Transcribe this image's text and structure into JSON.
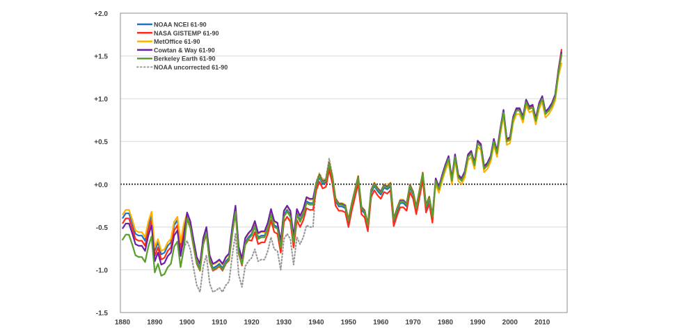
{
  "chart_data": {
    "type": "line",
    "title": "",
    "xlabel": "",
    "ylabel": "",
    "xlim": [
      1880,
      2016
    ],
    "ylim": [
      -1.5,
      2.0
    ],
    "x_start": 1880,
    "x_end": 2016,
    "x_ticks": [
      "1880",
      "1890",
      "1900",
      "1910",
      "1920",
      "1930",
      "1940",
      "1950",
      "1960",
      "1970",
      "1980",
      "1990",
      "2000",
      "2010"
    ],
    "y_ticks": [
      {
        "value": 2.0,
        "label": "+2.0"
      },
      {
        "value": 1.5,
        "label": "+1.5"
      },
      {
        "value": 1.0,
        "label": "+1.0"
      },
      {
        "value": 0.5,
        "label": "+0.5"
      },
      {
        "value": 0.0,
        "label": "+0.0"
      },
      {
        "value": -0.5,
        "label": "-0.5"
      },
      {
        "value": -1.0,
        "label": "-1.0"
      },
      {
        "value": -1.5,
        "label": "-1.5"
      }
    ],
    "grid": true,
    "zero_line": "dotted",
    "legend_position": "top-left",
    "series": [
      {
        "name": "NOAA uncorrected 61-90",
        "color": "#999999",
        "style": "dotted",
        "values": [
          -0.65,
          -0.59,
          -0.59,
          -0.7,
          -0.83,
          -0.85,
          -0.85,
          -0.91,
          -0.73,
          -0.61,
          -1.03,
          -0.93,
          -1.07,
          -1.05,
          -0.97,
          -0.93,
          -0.73,
          -0.67,
          -0.97,
          -0.75,
          -0.66,
          -0.76,
          -0.98,
          -1.18,
          -1.26,
          -0.96,
          -0.83,
          -1.16,
          -1.26,
          -1.24,
          -1.21,
          -1.26,
          -1.18,
          -1.14,
          -0.83,
          -0.58,
          -1.06,
          -1.2,
          -0.96,
          -0.9,
          -0.86,
          -0.76,
          -0.9,
          -0.88,
          -0.88,
          -0.78,
          -0.62,
          -0.76,
          -0.78,
          -1.0,
          -0.64,
          -0.58,
          -0.64,
          -0.94,
          -0.62,
          -0.7,
          -0.62,
          -0.48,
          -0.5,
          -0.5,
          0.03,
          0.13,
          0.05,
          0.07,
          0.3,
          0.11,
          -0.2,
          -0.26,
          -0.26,
          -0.28,
          -0.45,
          -0.26,
          -0.1,
          0.06,
          -0.3,
          -0.34,
          -0.5,
          -0.1,
          -0.02,
          -0.08,
          -0.12,
          -0.04,
          -0.06,
          -0.02,
          -0.44,
          -0.32,
          -0.22,
          -0.22,
          -0.26,
          -0.04,
          -0.12,
          -0.3,
          -0.1,
          0.1,
          -0.28,
          -0.18,
          -0.4,
          0.04,
          -0.06,
          0.08,
          0.2,
          0.3,
          0.04,
          0.32,
          0.08,
          0.04,
          0.12,
          0.32,
          0.36,
          0.22,
          0.48,
          0.44,
          0.18,
          0.22,
          0.3,
          0.5,
          0.36,
          0.62,
          0.84,
          0.5,
          0.52,
          0.76,
          0.86,
          0.86,
          0.76,
          0.96,
          0.88,
          0.9,
          0.74,
          0.92,
          1.0,
          0.82,
          0.86,
          0.92,
          1.02,
          1.3,
          1.52
        ]
      },
      {
        "name": "NOAA NCEI 61-90",
        "color": "#1f6fc5",
        "style": "solid",
        "values": [
          -0.4,
          -0.34,
          -0.34,
          -0.45,
          -0.58,
          -0.6,
          -0.6,
          -0.66,
          -0.48,
          -0.36,
          -0.78,
          -0.68,
          -0.82,
          -0.8,
          -0.72,
          -0.68,
          -0.48,
          -0.42,
          -0.72,
          -0.5,
          -0.38,
          -0.48,
          -0.7,
          -0.9,
          -0.98,
          -0.68,
          -0.55,
          -0.88,
          -0.98,
          -0.96,
          -0.93,
          -0.98,
          -0.9,
          -0.86,
          -0.55,
          -0.3,
          -0.78,
          -0.92,
          -0.68,
          -0.62,
          -0.58,
          -0.48,
          -0.62,
          -0.6,
          -0.6,
          -0.5,
          -0.34,
          -0.48,
          -0.5,
          -0.72,
          -0.36,
          -0.3,
          -0.36,
          -0.66,
          -0.34,
          -0.42,
          -0.34,
          -0.2,
          -0.22,
          -0.22,
          -0.02,
          0.08,
          0.0,
          0.02,
          0.22,
          0.06,
          -0.2,
          -0.26,
          -0.26,
          -0.28,
          -0.45,
          -0.26,
          -0.1,
          0.06,
          -0.3,
          -0.34,
          -0.5,
          -0.1,
          -0.02,
          -0.08,
          -0.12,
          -0.04,
          -0.06,
          -0.02,
          -0.44,
          -0.32,
          -0.22,
          -0.22,
          -0.26,
          -0.04,
          -0.12,
          -0.3,
          -0.1,
          0.1,
          -0.28,
          -0.18,
          -0.4,
          0.04,
          -0.06,
          0.08,
          0.2,
          0.3,
          0.04,
          0.32,
          0.08,
          0.04,
          0.12,
          0.32,
          0.36,
          0.22,
          0.48,
          0.44,
          0.18,
          0.22,
          0.3,
          0.5,
          0.36,
          0.62,
          0.84,
          0.5,
          0.52,
          0.76,
          0.86,
          0.86,
          0.76,
          0.96,
          0.88,
          0.9,
          0.74,
          0.92,
          1.0,
          0.82,
          0.86,
          0.92,
          1.02,
          1.3,
          1.52
        ]
      },
      {
        "name": "NASA GISTEMP 61-90",
        "color": "#ff2a1a",
        "style": "solid",
        "values": [
          -0.46,
          -0.4,
          -0.4,
          -0.51,
          -0.64,
          -0.66,
          -0.66,
          -0.72,
          -0.54,
          -0.42,
          -0.84,
          -0.74,
          -0.88,
          -0.86,
          -0.78,
          -0.74,
          -0.54,
          -0.48,
          -0.78,
          -0.56,
          -0.41,
          -0.51,
          -0.73,
          -0.93,
          -1.01,
          -0.71,
          -0.58,
          -0.91,
          -1.01,
          -0.99,
          -0.96,
          -1.01,
          -0.93,
          -0.89,
          -0.58,
          -0.33,
          -0.81,
          -0.95,
          -0.71,
          -0.65,
          -0.66,
          -0.56,
          -0.7,
          -0.68,
          -0.68,
          -0.58,
          -0.42,
          -0.56,
          -0.58,
          -0.8,
          -0.44,
          -0.38,
          -0.44,
          -0.74,
          -0.42,
          -0.5,
          -0.42,
          -0.28,
          -0.3,
          -0.3,
          -0.07,
          0.03,
          -0.05,
          -0.03,
          0.17,
          0.01,
          -0.25,
          -0.31,
          -0.31,
          -0.33,
          -0.5,
          -0.31,
          -0.15,
          0.01,
          -0.35,
          -0.39,
          -0.55,
          -0.15,
          -0.07,
          -0.13,
          -0.17,
          -0.09,
          -0.11,
          -0.07,
          -0.49,
          -0.37,
          -0.27,
          -0.27,
          -0.31,
          -0.09,
          -0.17,
          -0.35,
          -0.15,
          0.05,
          -0.33,
          -0.23,
          -0.45,
          0.06,
          -0.04,
          0.1,
          0.22,
          0.32,
          0.06,
          0.34,
          0.1,
          0.06,
          0.14,
          0.34,
          0.38,
          0.24,
          0.5,
          0.46,
          0.2,
          0.24,
          0.32,
          0.52,
          0.38,
          0.64,
          0.86,
          0.52,
          0.54,
          0.78,
          0.88,
          0.88,
          0.78,
          0.98,
          0.9,
          0.92,
          0.76,
          0.94,
          1.02,
          0.84,
          0.88,
          0.94,
          1.04,
          1.34,
          1.58
        ]
      },
      {
        "name": "MetOffice 61-90",
        "color": "#ffb000",
        "style": "solid",
        "values": [
          -0.36,
          -0.3,
          -0.3,
          -0.41,
          -0.54,
          -0.56,
          -0.56,
          -0.62,
          -0.44,
          -0.32,
          -0.74,
          -0.64,
          -0.78,
          -0.76,
          -0.68,
          -0.64,
          -0.44,
          -0.38,
          -0.68,
          -0.46,
          -0.34,
          -0.44,
          -0.66,
          -0.86,
          -0.94,
          -0.64,
          -0.51,
          -0.84,
          -0.94,
          -0.92,
          -0.89,
          -0.94,
          -0.86,
          -0.82,
          -0.51,
          -0.26,
          -0.74,
          -0.88,
          -0.64,
          -0.58,
          -0.54,
          -0.44,
          -0.58,
          -0.56,
          -0.56,
          -0.46,
          -0.3,
          -0.44,
          -0.46,
          -0.68,
          -0.32,
          -0.26,
          -0.32,
          -0.62,
          -0.3,
          -0.38,
          -0.3,
          -0.16,
          -0.18,
          -0.18,
          0.02,
          0.12,
          0.04,
          0.06,
          0.26,
          0.1,
          -0.16,
          -0.22,
          -0.22,
          -0.24,
          -0.41,
          -0.22,
          -0.06,
          0.1,
          -0.26,
          -0.3,
          -0.46,
          -0.06,
          0.02,
          -0.04,
          -0.08,
          0.0,
          -0.02,
          0.02,
          -0.4,
          -0.28,
          -0.18,
          -0.18,
          -0.22,
          0.0,
          -0.08,
          -0.26,
          -0.06,
          0.14,
          -0.24,
          -0.14,
          -0.36,
          0.0,
          -0.1,
          0.04,
          0.16,
          0.26,
          0.0,
          0.28,
          0.04,
          0.0,
          0.08,
          0.28,
          0.32,
          0.18,
          0.44,
          0.4,
          0.14,
          0.18,
          0.26,
          0.46,
          0.32,
          0.58,
          0.8,
          0.46,
          0.48,
          0.72,
          0.82,
          0.82,
          0.72,
          0.92,
          0.84,
          0.86,
          0.7,
          0.88,
          0.96,
          0.78,
          0.82,
          0.88,
          0.98,
          1.26,
          1.42
        ]
      },
      {
        "name": "Cowtan & Way 61-90",
        "color": "#6a1fa8",
        "style": "solid",
        "values": [
          -0.52,
          -0.46,
          -0.46,
          -0.57,
          -0.7,
          -0.72,
          -0.72,
          -0.78,
          -0.6,
          -0.48,
          -0.9,
          -0.8,
          -0.94,
          -0.92,
          -0.84,
          -0.8,
          -0.6,
          -0.54,
          -0.84,
          -0.62,
          -0.33,
          -0.43,
          -0.65,
          -0.85,
          -0.93,
          -0.63,
          -0.5,
          -0.83,
          -0.93,
          -0.91,
          -0.88,
          -0.93,
          -0.85,
          -0.81,
          -0.5,
          -0.25,
          -0.73,
          -0.87,
          -0.63,
          -0.57,
          -0.53,
          -0.43,
          -0.57,
          -0.55,
          -0.55,
          -0.45,
          -0.29,
          -0.43,
          -0.45,
          -0.67,
          -0.31,
          -0.25,
          -0.31,
          -0.61,
          -0.29,
          -0.37,
          -0.29,
          -0.15,
          -0.17,
          -0.17,
          0.01,
          0.11,
          0.03,
          0.05,
          0.25,
          0.09,
          -0.17,
          -0.23,
          -0.23,
          -0.25,
          -0.42,
          -0.23,
          -0.07,
          0.09,
          -0.27,
          -0.31,
          -0.47,
          -0.07,
          0.01,
          -0.05,
          -0.09,
          -0.01,
          -0.03,
          0.01,
          -0.41,
          -0.29,
          -0.19,
          -0.19,
          -0.23,
          -0.01,
          -0.09,
          -0.27,
          -0.07,
          0.13,
          -0.25,
          -0.15,
          -0.37,
          0.07,
          -0.03,
          0.11,
          0.23,
          0.33,
          0.07,
          0.35,
          0.11,
          0.07,
          0.15,
          0.35,
          0.39,
          0.25,
          0.51,
          0.47,
          0.21,
          0.25,
          0.33,
          0.53,
          0.39,
          0.65,
          0.87,
          0.53,
          0.55,
          0.79,
          0.89,
          0.89,
          0.79,
          0.99,
          0.91,
          0.93,
          0.77,
          0.95,
          1.03,
          0.85,
          0.89,
          0.95,
          1.05,
          1.33,
          1.55
        ]
      },
      {
        "name": "Berkeley Earth 61-90",
        "color": "#5aa02c",
        "style": "solid",
        "values": [
          -0.65,
          -0.59,
          -0.59,
          -0.7,
          -0.83,
          -0.85,
          -0.85,
          -0.91,
          -0.73,
          -0.61,
          -1.03,
          -0.93,
          -1.07,
          -1.05,
          -0.97,
          -0.93,
          -0.73,
          -0.67,
          -0.97,
          -0.75,
          -0.4,
          -0.5,
          -0.72,
          -0.92,
          -1.0,
          -0.7,
          -0.57,
          -0.9,
          -1.0,
          -0.98,
          -0.95,
          -1.0,
          -0.92,
          -0.88,
          -0.57,
          -0.32,
          -0.8,
          -0.94,
          -0.7,
          -0.64,
          -0.6,
          -0.5,
          -0.64,
          -0.62,
          -0.62,
          -0.52,
          -0.36,
          -0.5,
          -0.52,
          -0.74,
          -0.38,
          -0.32,
          -0.38,
          -0.68,
          -0.36,
          -0.44,
          -0.36,
          -0.22,
          -0.24,
          -0.24,
          0.0,
          0.1,
          0.02,
          0.04,
          0.24,
          0.08,
          -0.18,
          -0.24,
          -0.24,
          -0.26,
          -0.43,
          -0.24,
          -0.08,
          0.08,
          -0.28,
          -0.32,
          -0.48,
          -0.08,
          0.0,
          -0.06,
          -0.1,
          -0.02,
          -0.04,
          0.0,
          -0.42,
          -0.3,
          -0.2,
          -0.2,
          -0.24,
          -0.02,
          -0.1,
          -0.28,
          -0.08,
          0.12,
          -0.26,
          -0.16,
          -0.38,
          0.04,
          -0.06,
          0.08,
          0.2,
          0.3,
          0.04,
          0.32,
          0.08,
          0.04,
          0.12,
          0.32,
          0.36,
          0.22,
          0.48,
          0.44,
          0.18,
          0.22,
          0.3,
          0.5,
          0.36,
          0.62,
          0.84,
          0.5,
          0.52,
          0.76,
          0.86,
          0.86,
          0.76,
          0.96,
          0.88,
          0.9,
          0.74,
          0.92,
          1.0,
          0.82,
          0.86,
          0.92,
          1.02,
          1.3,
          1.52
        ]
      }
    ],
    "legend_order": [
      "NOAA NCEI 61-90",
      "NASA GISTEMP 61-90",
      "MetOffice 61-90",
      "Cowtan & Way 61-90",
      "Berkeley Earth 61-90",
      "NOAA uncorrected 61-90"
    ]
  }
}
